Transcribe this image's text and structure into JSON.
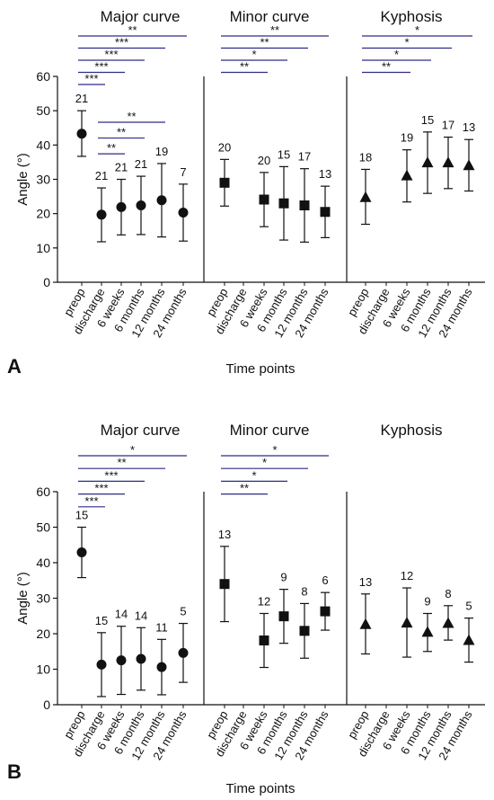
{
  "chart_data": [
    {
      "panel_letter": "A",
      "type": "scatter",
      "ylabel": "Angle (°)",
      "xlabel": "Time points",
      "ylim": [
        0,
        60
      ],
      "yticks": [
        0,
        10,
        20,
        30,
        40,
        50,
        60
      ],
      "categories": [
        "preop",
        "discharge",
        "6 weeks",
        "6 months",
        "12 months",
        "24 months"
      ],
      "groups": [
        {
          "title": "Major curve",
          "marker": "circle",
          "points": [
            {
              "x": "preop",
              "mean": 43.3,
              "low": 36.7,
              "high": 50.0,
              "n": "21"
            },
            {
              "x": "discharge",
              "mean": 19.7,
              "low": 11.8,
              "high": 27.5,
              "n": "21"
            },
            {
              "x": "6 weeks",
              "mean": 21.9,
              "low": 13.8,
              "high": 30.0,
              "n": "21"
            },
            {
              "x": "6 months",
              "mean": 22.4,
              "low": 13.9,
              "high": 30.9,
              "n": "21"
            },
            {
              "x": "12 months",
              "mean": 23.9,
              "low": 13.2,
              "high": 34.6,
              "n": "19"
            },
            {
              "x": "24 months",
              "mean": 20.3,
              "low": 12.0,
              "high": 28.6,
              "n": "7"
            }
          ],
          "brackets": [
            {
              "from": "preop",
              "to": "discharge",
              "label": "***"
            },
            {
              "from": "preop",
              "to": "6 weeks",
              "label": "***"
            },
            {
              "from": "preop",
              "to": "6 months",
              "label": "***"
            },
            {
              "from": "preop",
              "to": "12 months",
              "label": "***"
            },
            {
              "from": "preop",
              "to": "24 months",
              "label": "**"
            },
            {
              "from": "discharge",
              "to": "6 weeks",
              "label": "**"
            },
            {
              "from": "discharge",
              "to": "6 months",
              "label": "**"
            },
            {
              "from": "discharge",
              "to": "12 months",
              "label": "**"
            }
          ]
        },
        {
          "title": "Minor curve",
          "marker": "square",
          "points": [
            {
              "x": "preop",
              "mean": 29.0,
              "low": 22.2,
              "high": 35.8,
              "n": "20"
            },
            {
              "x": "6 weeks",
              "mean": 24.1,
              "low": 16.2,
              "high": 32.0,
              "n": "20"
            },
            {
              "x": "6 months",
              "mean": 23.0,
              "low": 12.3,
              "high": 33.7,
              "n": "15"
            },
            {
              "x": "12 months",
              "mean": 22.4,
              "low": 11.7,
              "high": 33.1,
              "n": "17"
            },
            {
              "x": "24 months",
              "mean": 20.5,
              "low": 13.0,
              "high": 28.0,
              "n": "13"
            }
          ],
          "brackets": [
            {
              "from": "preop",
              "to": "6 weeks",
              "label": "**"
            },
            {
              "from": "preop",
              "to": "6 months",
              "label": "*"
            },
            {
              "from": "preop",
              "to": "12 months",
              "label": "**"
            },
            {
              "from": "preop",
              "to": "24 months",
              "label": "**"
            }
          ]
        },
        {
          "title": "Kyphosis",
          "marker": "triangle",
          "points": [
            {
              "x": "preop",
              "mean": 24.7,
              "low": 16.9,
              "high": 32.9,
              "n": "18"
            },
            {
              "x": "6 weeks",
              "mean": 31.0,
              "low": 23.4,
              "high": 38.6,
              "n": "19"
            },
            {
              "x": "6 months",
              "mean": 34.8,
              "low": 25.9,
              "high": 43.8,
              "n": "15"
            },
            {
              "x": "12 months",
              "mean": 34.8,
              "low": 27.3,
              "high": 42.3,
              "n": "17"
            },
            {
              "x": "24 months",
              "mean": 34.0,
              "low": 26.6,
              "high": 41.6,
              "n": "13"
            }
          ],
          "brackets": [
            {
              "from": "preop",
              "to": "6 weeks",
              "label": "**"
            },
            {
              "from": "preop",
              "to": "6 months",
              "label": "*"
            },
            {
              "from": "preop",
              "to": "12 months",
              "label": "*"
            },
            {
              "from": "preop",
              "to": "24 months",
              "label": "*"
            }
          ]
        }
      ]
    },
    {
      "panel_letter": "B",
      "type": "scatter",
      "ylabel": "Angle (°)",
      "xlabel": "Time points",
      "ylim": [
        0,
        60
      ],
      "yticks": [
        0,
        10,
        20,
        30,
        40,
        50,
        60
      ],
      "categories": [
        "preop",
        "discharge",
        "6 weeks",
        "6 months",
        "12 months",
        "24 months"
      ],
      "groups": [
        {
          "title": "Major curve",
          "marker": "circle",
          "points": [
            {
              "x": "preop",
              "mean": 42.9,
              "low": 35.8,
              "high": 50.0,
              "n": "15"
            },
            {
              "x": "discharge",
              "mean": 11.3,
              "low": 2.3,
              "high": 20.3,
              "n": "15"
            },
            {
              "x": "6 weeks",
              "mean": 12.5,
              "low": 2.9,
              "high": 22.1,
              "n": "14"
            },
            {
              "x": "6 months",
              "mean": 12.9,
              "low": 4.1,
              "high": 21.7,
              "n": "14"
            },
            {
              "x": "12 months",
              "mean": 10.6,
              "low": 2.8,
              "high": 18.4,
              "n": "11"
            },
            {
              "x": "24 months",
              "mean": 14.6,
              "low": 6.3,
              "high": 22.9,
              "n": "5"
            }
          ],
          "brackets": [
            {
              "from": "preop",
              "to": "discharge",
              "label": "***"
            },
            {
              "from": "preop",
              "to": "6 weeks",
              "label": "***"
            },
            {
              "from": "preop",
              "to": "6 months",
              "label": "***"
            },
            {
              "from": "preop",
              "to": "12 months",
              "label": "**"
            },
            {
              "from": "preop",
              "to": "24 months",
              "label": "*"
            }
          ]
        },
        {
          "title": "Minor curve",
          "marker": "square",
          "points": [
            {
              "x": "preop",
              "mean": 34.0,
              "low": 23.4,
              "high": 44.6,
              "n": "13"
            },
            {
              "x": "6 weeks",
              "mean": 18.1,
              "low": 10.5,
              "high": 25.7,
              "n": "12"
            },
            {
              "x": "6 months",
              "mean": 24.9,
              "low": 17.3,
              "high": 32.5,
              "n": "9"
            },
            {
              "x": "12 months",
              "mean": 20.8,
              "low": 13.1,
              "high": 28.5,
              "n": "8"
            },
            {
              "x": "24 months",
              "mean": 26.3,
              "low": 21.0,
              "high": 31.6,
              "n": "6"
            }
          ],
          "brackets": [
            {
              "from": "preop",
              "to": "6 weeks",
              "label": "**"
            },
            {
              "from": "preop",
              "to": "6 months",
              "label": "*"
            },
            {
              "from": "preop",
              "to": "12 months",
              "label": "*"
            },
            {
              "from": "preop",
              "to": "24 months",
              "label": "*"
            }
          ]
        },
        {
          "title": "Kyphosis",
          "marker": "triangle",
          "points": [
            {
              "x": "preop",
              "mean": 22.6,
              "low": 14.3,
              "high": 31.2,
              "n": "13"
            },
            {
              "x": "6 weeks",
              "mean": 23.0,
              "low": 13.4,
              "high": 32.9,
              "n": "12"
            },
            {
              "x": "6 months",
              "mean": 20.4,
              "low": 15.0,
              "high": 25.7,
              "n": "9"
            },
            {
              "x": "12 months",
              "mean": 22.9,
              "low": 18.2,
              "high": 27.9,
              "n": "8"
            },
            {
              "x": "24 months",
              "mean": 18.1,
              "low": 12.0,
              "high": 24.4,
              "n": "5"
            }
          ],
          "brackets": []
        }
      ]
    }
  ]
}
